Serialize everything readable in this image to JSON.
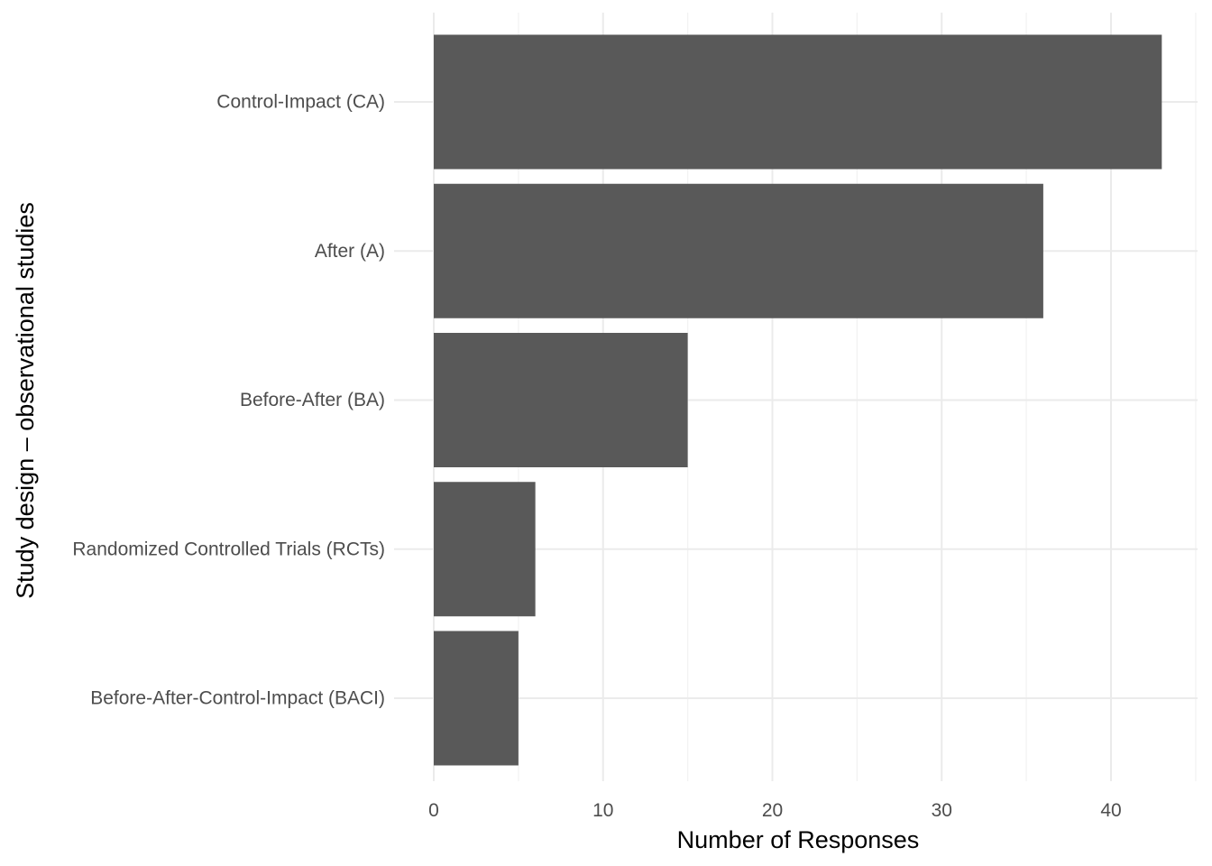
{
  "chart_data": {
    "type": "bar",
    "orientation": "horizontal",
    "title": "",
    "xlabel": "Number of Responses",
    "ylabel": "Study design – observational studies",
    "categories": [
      "Control-Impact (CA)",
      "After (A)",
      "Before-After (BA)",
      "Randomized Controlled Trials (RCTs)",
      "Before-After-Control-Impact (BACI)"
    ],
    "values": [
      43,
      36,
      15,
      6,
      5
    ],
    "xlim": [
      0,
      45
    ],
    "xticks": [
      0,
      10,
      20,
      30,
      40
    ],
    "xtick_labels": [
      "0",
      "10",
      "20",
      "30",
      "40"
    ],
    "grid": true,
    "legend": "none",
    "colors": {
      "bar": "#595959",
      "grid_major": "#ebebeb",
      "grid_minor": "#f2f2f2",
      "tick_text": "#4d4d4d",
      "title_text": "#000000"
    }
  }
}
